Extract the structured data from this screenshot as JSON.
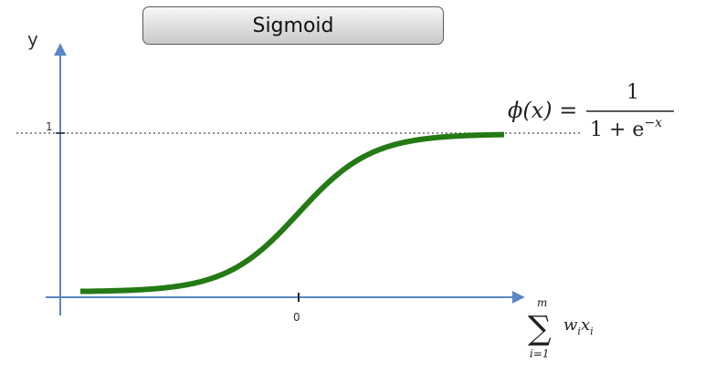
{
  "title": "Sigmoid",
  "axes": {
    "y_label": "y",
    "one_label": "1",
    "zero_label": "0",
    "sum_symbol": "∑",
    "sum_upper": "m",
    "sum_lower": "i=1",
    "sum_w": "w",
    "sum_w_sub": "i",
    "sum_x": "x",
    "sum_x_sub": "i"
  },
  "formula": {
    "lhs": "ϕ(x) =",
    "numerator": "1",
    "denominator_base": "1 + e",
    "denominator_exp": "−x"
  },
  "colors": {
    "axis": "#5b86c4",
    "curve": "#247a14",
    "dotted": "#666666"
  }
}
